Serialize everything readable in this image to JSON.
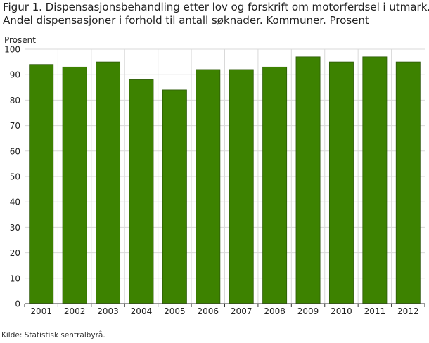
{
  "chart_data": {
    "type": "bar",
    "title": "Figur 1. Dispensasjonsbehandling etter lov og forskrift om motorferdsel i utmark.",
    "subtitle": "Andel dispensasjoner i forhold til antall søknader. Kommuner. Prosent",
    "ylabel": "Prosent",
    "xlabel": "",
    "categories": [
      "2001",
      "2002",
      "2003",
      "2004",
      "2005",
      "2006",
      "2007",
      "2008",
      "2009",
      "2010",
      "2011",
      "2012"
    ],
    "values": [
      94,
      93,
      95,
      88,
      84,
      92,
      92,
      93,
      97,
      95,
      97,
      95
    ],
    "ylim": [
      0,
      100
    ],
    "yticks": [
      0,
      10,
      20,
      30,
      40,
      50,
      60,
      70,
      80,
      90,
      100
    ],
    "grid": true,
    "bar_color": "#3d8200",
    "bar_edge_color": "#2e5a0a",
    "grid_color": "#d9d9d9"
  },
  "source": "Kilde: Statistisk sentralbyrå."
}
